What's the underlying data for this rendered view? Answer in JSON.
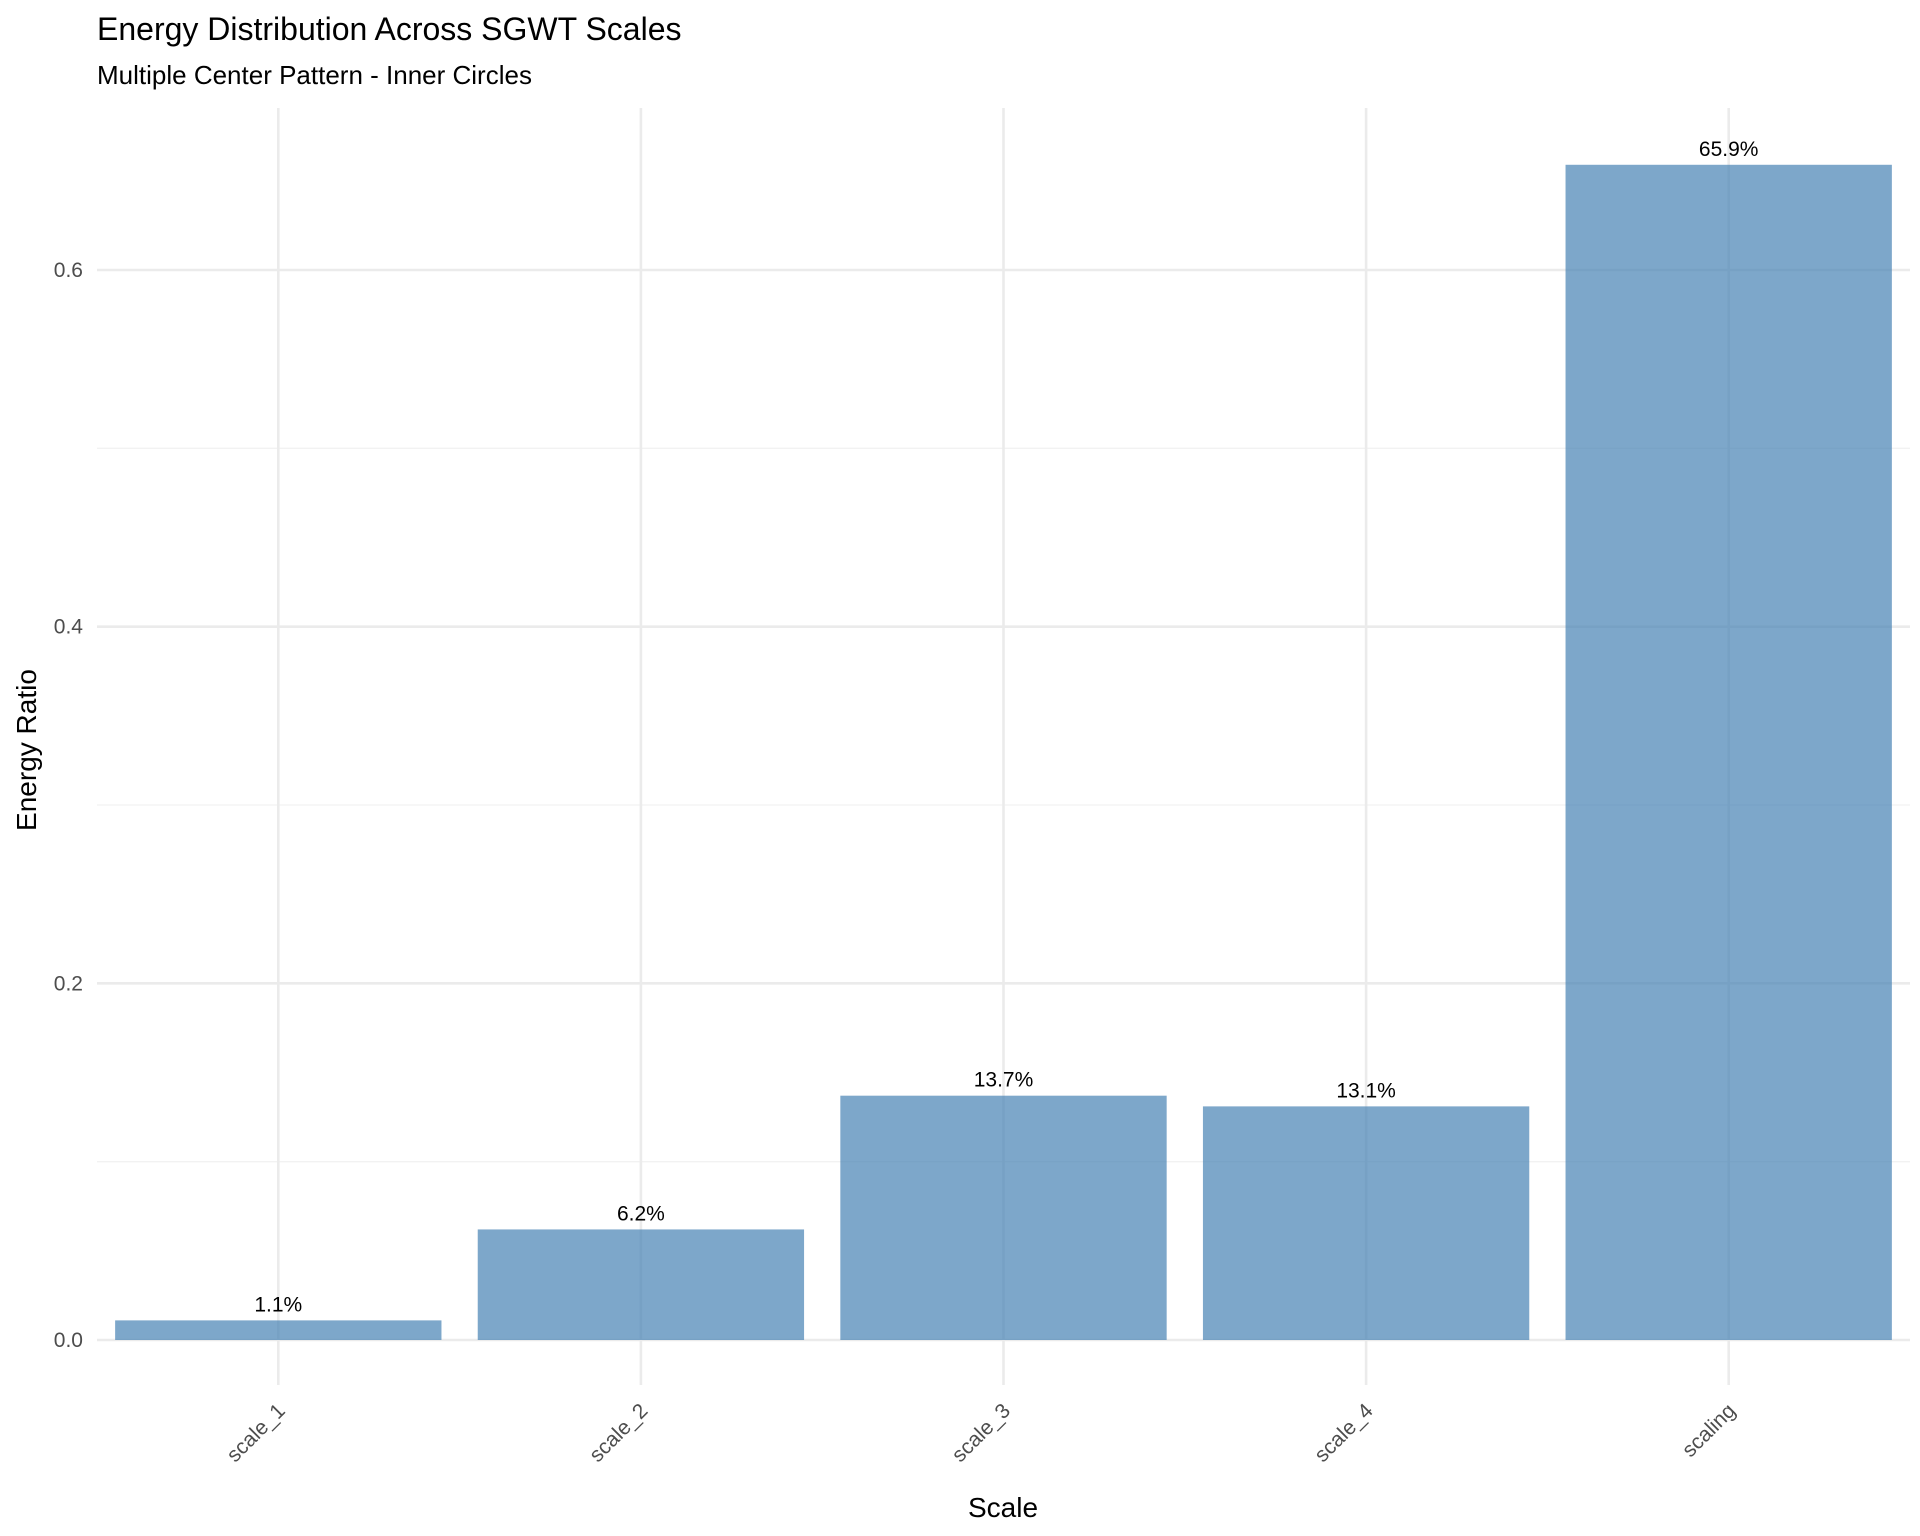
{
  "colors": {
    "bar": "#4682B4",
    "grid_major": "#ebebeb",
    "grid_minor": "#f2f2f2",
    "text": "#000000",
    "tick_text": "#4d4d4d"
  },
  "chart_data": {
    "type": "bar",
    "title": "Energy Distribution Across SGWT Scales",
    "subtitle": "Multiple Center Pattern - Inner Circles",
    "xlabel": "Scale",
    "ylabel": "Energy Ratio",
    "categories": [
      "scale_1",
      "scale_2",
      "scale_3",
      "scale_4",
      "scaling"
    ],
    "values": [
      0.011,
      0.062,
      0.137,
      0.131,
      0.659
    ],
    "data_labels": [
      "1.1%",
      "6.2%",
      "13.7%",
      "13.1%",
      "65.9%"
    ],
    "ylim": [
      -0.03,
      0.69
    ],
    "yticks": [
      0.0,
      0.2,
      0.4,
      0.6
    ],
    "ytick_labels": [
      "0.0",
      "0.2",
      "0.4",
      "0.6"
    ],
    "grid": true,
    "legend": "none",
    "bar_opacity": 0.7
  }
}
